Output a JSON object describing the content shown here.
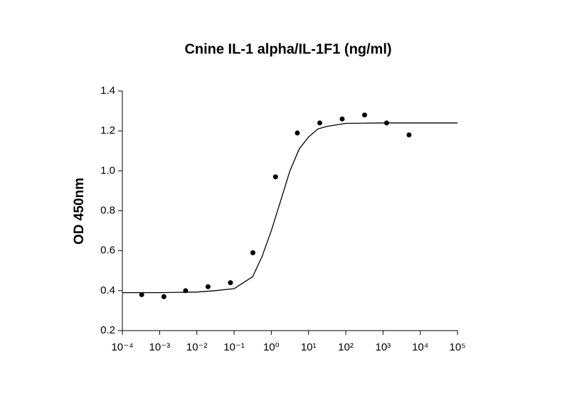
{
  "chart_data": {
    "type": "scatter",
    "title": "Cnine IL-1 alpha/IL-1F1 (ng/ml)",
    "y_label": "OD 450nm",
    "xscale": "log",
    "xlim": [
      0.0001,
      100000
    ],
    "xticks": [
      {
        "value": 0.0001,
        "label": "10⁻⁴"
      },
      {
        "value": 0.001,
        "label": "10⁻³"
      },
      {
        "value": 0.01,
        "label": "10⁻²"
      },
      {
        "value": 0.1,
        "label": "10⁻¹"
      },
      {
        "value": 1,
        "label": "10⁰"
      },
      {
        "value": 10,
        "label": "10¹"
      },
      {
        "value": 100,
        "label": "10²"
      },
      {
        "value": 1000,
        "label": "10³"
      },
      {
        "value": 10000,
        "label": "10⁴"
      },
      {
        "value": 100000,
        "label": "10⁵"
      }
    ],
    "ylim": [
      0.2,
      1.4
    ],
    "yticks": [
      0.2,
      0.4,
      0.6,
      0.8,
      {
        "value": 1.0,
        "label": "1.0"
      },
      1.2,
      1.4
    ],
    "grid": false,
    "series": [
      {
        "type": "scatter",
        "color": "#000000",
        "x": [
          0.00033,
          0.0013,
          0.005,
          0.02,
          0.08,
          0.32,
          1.3,
          5.0,
          20,
          80,
          320,
          1250,
          5000
        ],
        "values": [
          0.38,
          0.37,
          0.4,
          0.42,
          0.44,
          0.59,
          0.97,
          1.19,
          1.24,
          1.26,
          1.28,
          1.24,
          1.18
        ]
      },
      {
        "type": "line",
        "color": "#000000",
        "x": [
          0.0001,
          0.001,
          0.01,
          0.0316,
          0.1,
          0.178,
          0.316,
          0.562,
          1,
          1.78,
          3.16,
          5.62,
          10,
          17.8,
          31.6,
          100,
          1000,
          100000
        ],
        "values": [
          0.39,
          0.39,
          0.393,
          0.4,
          0.41,
          0.44,
          0.47,
          0.57,
          0.7,
          0.85,
          1.0,
          1.11,
          1.17,
          1.21,
          1.223,
          1.238,
          1.24,
          1.24
        ]
      }
    ]
  }
}
